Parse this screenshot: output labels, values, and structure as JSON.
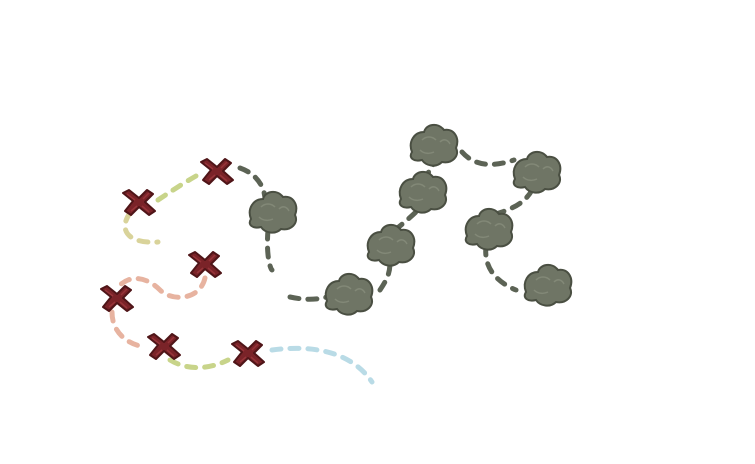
{
  "level_map": {
    "node_count": 14,
    "cleared_marker": "x-mark-icon",
    "pending_marker": "rock-blob-icon",
    "colors": {
      "x_mark": "#7a2328",
      "x_mark_dark": "#4f1518",
      "rock": "#6f7565",
      "rock_dark": "#4a4f42",
      "trail_green": "#c8d48a",
      "trail_pink": "#e7b3a0",
      "trail_gray": "#5c6355",
      "trail_cyan": "#b9dbe6",
      "background": "#ffffff"
    },
    "nodes_cleared": 6,
    "nodes_pending": 8
  }
}
